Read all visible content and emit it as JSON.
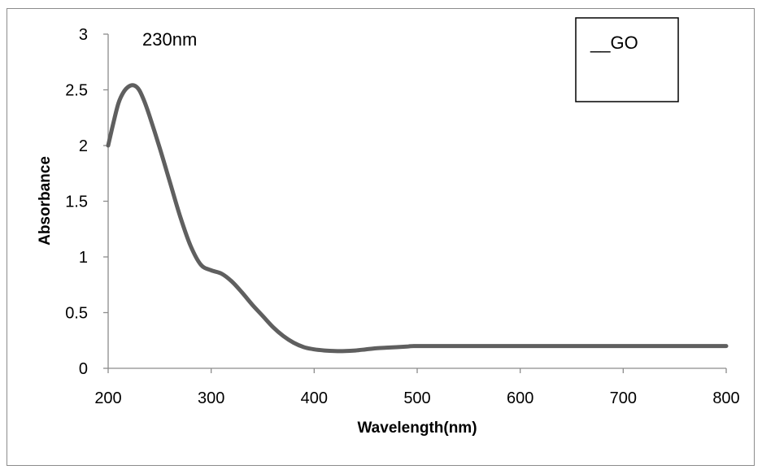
{
  "chart_data": {
    "type": "line",
    "title": "",
    "xlabel": "Wavelength(nm)",
    "ylabel": "Absorbance",
    "xlim": [
      200,
      800
    ],
    "ylim": [
      0,
      3
    ],
    "x_ticks": [
      "200",
      "300",
      "400",
      "500",
      "600",
      "700",
      "800"
    ],
    "y_ticks": [
      "0",
      "0.5",
      "1",
      "1.5",
      "2",
      "2.5",
      "3"
    ],
    "grid": false,
    "legend_position": "top-right",
    "annotation": "230nm",
    "series": [
      {
        "name": "__GO",
        "color": "#5f5f5f",
        "x": [
          200,
          205,
          210,
          215,
          220,
          225,
          230,
          235,
          240,
          250,
          260,
          270,
          280,
          290,
          300,
          310,
          320,
          330,
          340,
          350,
          360,
          370,
          380,
          390,
          400,
          410,
          420,
          430,
          440,
          450,
          460,
          470,
          480,
          490,
          500,
          550,
          600,
          650,
          700,
          750,
          800
        ],
        "y": [
          2.0,
          2.2,
          2.38,
          2.48,
          2.53,
          2.54,
          2.5,
          2.4,
          2.27,
          1.98,
          1.67,
          1.36,
          1.1,
          0.93,
          0.88,
          0.85,
          0.78,
          0.68,
          0.57,
          0.47,
          0.37,
          0.29,
          0.23,
          0.19,
          0.17,
          0.16,
          0.155,
          0.155,
          0.16,
          0.17,
          0.18,
          0.185,
          0.19,
          0.195,
          0.2,
          0.2,
          0.2,
          0.2,
          0.2,
          0.2,
          0.2
        ]
      }
    ]
  }
}
